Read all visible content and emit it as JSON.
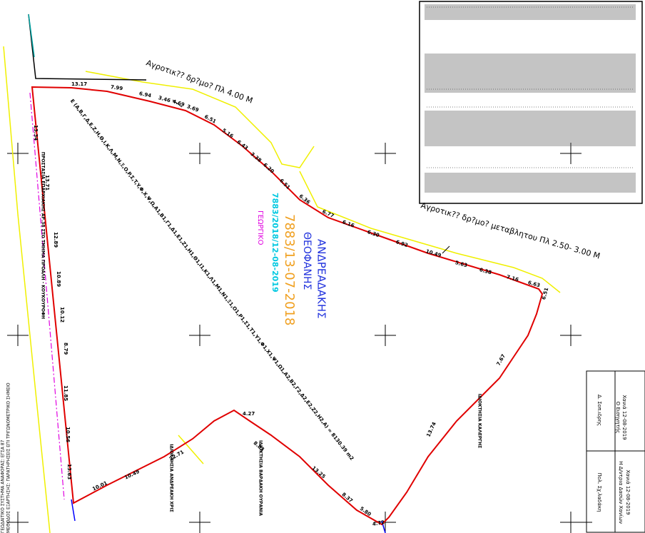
{
  "roads": {
    "north": "Αγροτικ?? δρ?μο? Πλ 4.00 Μ",
    "east": "Αγροτικ?? δρ?μο? μεταβλητου Πλ 2.50- 3.00 Μ"
  },
  "parcel": {
    "owner_surname": "ΑΝΔΡΕΑΔΑΚΗΣ",
    "owner_name": "ΘΕΟΦΑΝΗΣ",
    "ref_1": "7883/13-07-2018",
    "ref_2": "7883/2018/12-08-2019",
    "use": "ΓΕΩΡΓΙΚΟ",
    "area": "E (A,B,Γ,Δ,E,Z,H,Θ,I,K,Λ,M,N,Ξ,O,P,Σ,T,Y,Φ,X,Ψ,Ω,A1,B1,Γ1,Δ1,E1,Z1,H1,Θ1,I1,K1,Λ1,M1,N1,Ξ1,O1,P1,Σ1,T1,Y1,Φ1,X1,Ψ1,Ω1,A2,B2,Γ2,Δ2,E2,Z2,H2,A) = 8130.39 m2"
  },
  "edge_lengths": [
    "13.17",
    "7.99",
    "6.94",
    "3.46",
    "4.69",
    "3.69",
    "6.51",
    "5.16",
    "6.43",
    "3.38",
    "6.20",
    "6.51",
    "6.36",
    "6.77",
    "6.16",
    "6.30",
    "6.92",
    "10.49",
    "5.63",
    "6.38",
    "7.16",
    "6.63",
    "6.51",
    "13.34",
    "13.71",
    "12.89",
    "10.89",
    "10.12",
    "8.79",
    "11.85",
    "10.56",
    "13.63",
    "10.01",
    "10.49",
    "22.71",
    "4.27",
    "8.83",
    "13.25",
    "8.37",
    "5.80",
    "4.72",
    "13.74",
    "7.67"
  ],
  "neighbours": [
    "ΙΔΙΟΚΤΗΣΙΑ ΚΑΛΕΡΓΗΣ",
    "ΙΔΙΟΚΤΗΣΙΑ ΒΑΡΔΑΚΗ ΟΥΡΑΝΙΑ",
    "ΙΔΙΟΚΤΗΣΙΑ ΑΝΔΡΕΑΚΗ ΧΡΙΣ",
    "ΠΡΟΣΤΑΣΙΑ ΕΠΑΡΧΙΑΚΗΣ ΑΡ.38 ΣΤΟ ΤΜΗΜΑ ΠΡΟΑΛΗ - ΚΟΥΚΟΥΡΟΦΗ"
  ],
  "margin_notes": [
    "ΓΕΩΔΑΙΤΙΚΟ ΣΥΣΤΗΜΑ ΑΝΑΦΟΡΑΣ: ΕΓΣΑ 87",
    "ΜΕΘΟΔΟΣ ΕΞΑΡΤΗΣΗΣ: ΠΑΡΑΤΗΡΗΣΕΙΣ ΕΠΙ ΤΡΙΓΩΝΟΜΕΤΡΙΚΟ ΣΗΜΕΙΟ"
  ],
  "title_block": {
    "date_1": "Χανιά 12-08-2019",
    "role_1": "Ο Εισηγητής",
    "name_1": "Δ. Σοπ.ιδρης",
    "date_2": "Χανιά 12-08-2019",
    "role_2": "Η Δ/ντρια Δασών Χανίων",
    "name_2": "Πολ. Σχ.λαδάκη"
  }
}
